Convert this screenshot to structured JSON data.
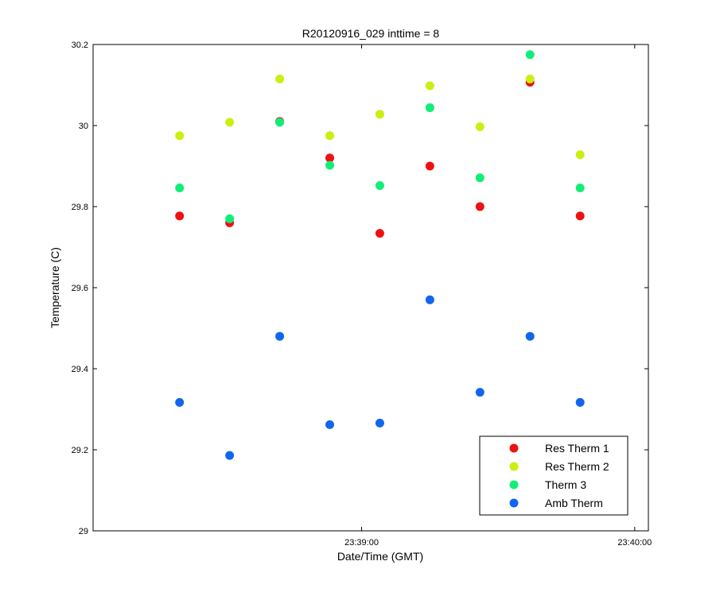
{
  "chart_data": {
    "type": "scatter",
    "title": "R20120916_029 inttime = 8",
    "xlabel": "Date/Time (GMT)",
    "ylabel": "Temperature (C)",
    "ylim": [
      29,
      30.2
    ],
    "xlim": [
      "23:38:01",
      "23:40:03"
    ],
    "yticks": [
      "29",
      "29.2",
      "29.4",
      "29.6",
      "29.8",
      "30",
      "30.2"
    ],
    "xticks": [
      {
        "x": "23:39:00",
        "label": "23:39:00"
      },
      {
        "x": "23:40:00",
        "label": "23:40:00"
      }
    ],
    "x": [
      "23:38:20",
      "23:38:31",
      "23:38:42",
      "23:38:53",
      "23:39:04",
      "23:39:15",
      "23:39:26",
      "23:39:37",
      "23:39:48"
    ],
    "legend_position": "bottom-right",
    "grid": false,
    "series": [
      {
        "name": "Res Therm 1",
        "color": "#ee1111",
        "values": [
          29.777,
          29.76,
          30.01,
          29.92,
          29.734,
          29.9,
          29.8,
          30.107,
          29.777
        ]
      },
      {
        "name": "Res Therm 2",
        "color": "#ccee11",
        "values": [
          29.975,
          30.008,
          30.115,
          29.975,
          30.028,
          30.098,
          29.997,
          30.115,
          29.928
        ]
      },
      {
        "name": "Therm 3",
        "color": "#11ee77",
        "values": [
          29.846,
          29.77,
          30.008,
          29.902,
          29.852,
          30.044,
          29.871,
          30.175,
          29.846
        ]
      },
      {
        "name": "Amb Therm",
        "color": "#1166ee",
        "values": [
          29.317,
          29.186,
          29.48,
          29.262,
          29.266,
          29.57,
          29.342,
          29.48,
          29.317
        ]
      }
    ]
  }
}
